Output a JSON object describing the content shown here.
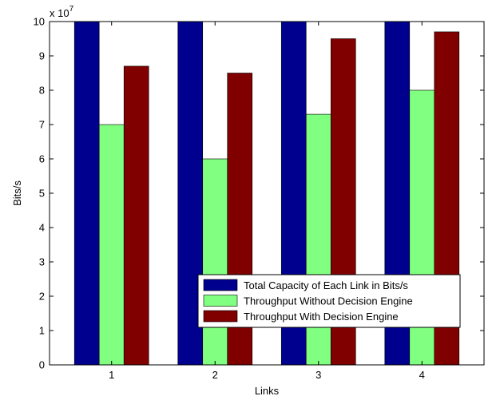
{
  "chart_data": {
    "type": "bar",
    "title": "",
    "xlabel": "Links",
    "ylabel": "Bits/s",
    "exponent_label": "x 10",
    "exponent_power": "7",
    "categories": [
      "1",
      "2",
      "3",
      "4"
    ],
    "ylim": [
      0,
      10
    ],
    "yticks": [
      "0",
      "1",
      "2",
      "3",
      "4",
      "5",
      "6",
      "7",
      "8",
      "9",
      "10"
    ],
    "grid": false,
    "legend_position": "bottom-right",
    "series": [
      {
        "name": "Total Capacity of Each Link in Bits/s",
        "color": "#00008F",
        "values": [
          10,
          10,
          10,
          10
        ]
      },
      {
        "name": "Throughput Without Decision Engine",
        "color": "#80FF80",
        "values": [
          7.0,
          6.0,
          7.3,
          8.0
        ]
      },
      {
        "name": "Throughput With Decision Engine",
        "color": "#800000",
        "values": [
          8.7,
          8.5,
          9.5,
          9.7
        ]
      }
    ]
  }
}
